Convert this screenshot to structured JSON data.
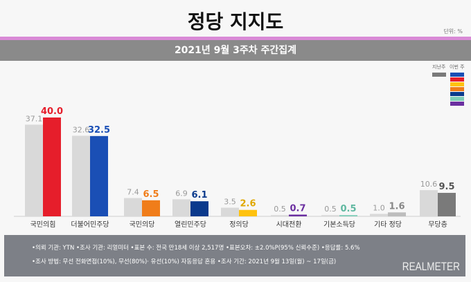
{
  "title": "정당 지지도",
  "unit": "단위: %",
  "subtitle": "2021년 9월 3주차 주간집계",
  "legend": {
    "last_week": "지난주",
    "this_week": "이번 주",
    "last_week_color": "#7a7a7a",
    "this_week_colors": [
      "#1a4fb5",
      "#e61e2b",
      "#ffc20e",
      "#f07d1a",
      "#0b3a8c",
      "#7ecdb8",
      "#6b2fa0"
    ]
  },
  "chart_data": {
    "type": "bar",
    "categories": [
      "국민의힘",
      "더불어민주당",
      "국민의당",
      "열린민주당",
      "정의당",
      "시대전환",
      "기본소득당",
      "기타 정당",
      "무당층"
    ],
    "series": [
      {
        "name": "지난주",
        "values": [
          37.1,
          32.6,
          7.4,
          6.9,
          3.5,
          0.5,
          0.5,
          1.0,
          10.6
        ]
      },
      {
        "name": "이번 주",
        "values": [
          40.0,
          32.5,
          6.5,
          6.1,
          2.6,
          0.7,
          0.5,
          1.6,
          9.5
        ]
      }
    ],
    "colors": [
      "#e61e2b",
      "#1a4fb5",
      "#f07d1a",
      "#0b3a8c",
      "#ffc20e",
      "#6b2fa0",
      "#7ecdb8",
      "#bdbdbd",
      "#7a7a7a"
    ],
    "label_colors": [
      "#e61e2b",
      "#1a4fb5",
      "#f07d1a",
      "#0b3a8c",
      "#e0a800",
      "#6b2fa0",
      "#5fb8a0",
      "#888888",
      "#555555"
    ],
    "ylim": [
      0,
      42
    ]
  },
  "footer": {
    "line1": "•의뢰 기관: YTN •조사 기관: 리얼미터 •표본 수: 전국 만18세 이상 2,517명 •표본오차: ±2.0%P(95% 신뢰수준) •응답률: 5.6%",
    "line2": "•조사 방법: 무선 전화면접(10%), 무선(80%)· 유선(10%) 자동응답 혼용 •조사 기간: 2021년 9월 13일(월) ~ 17일(금)",
    "logo": "REALMETER"
  }
}
